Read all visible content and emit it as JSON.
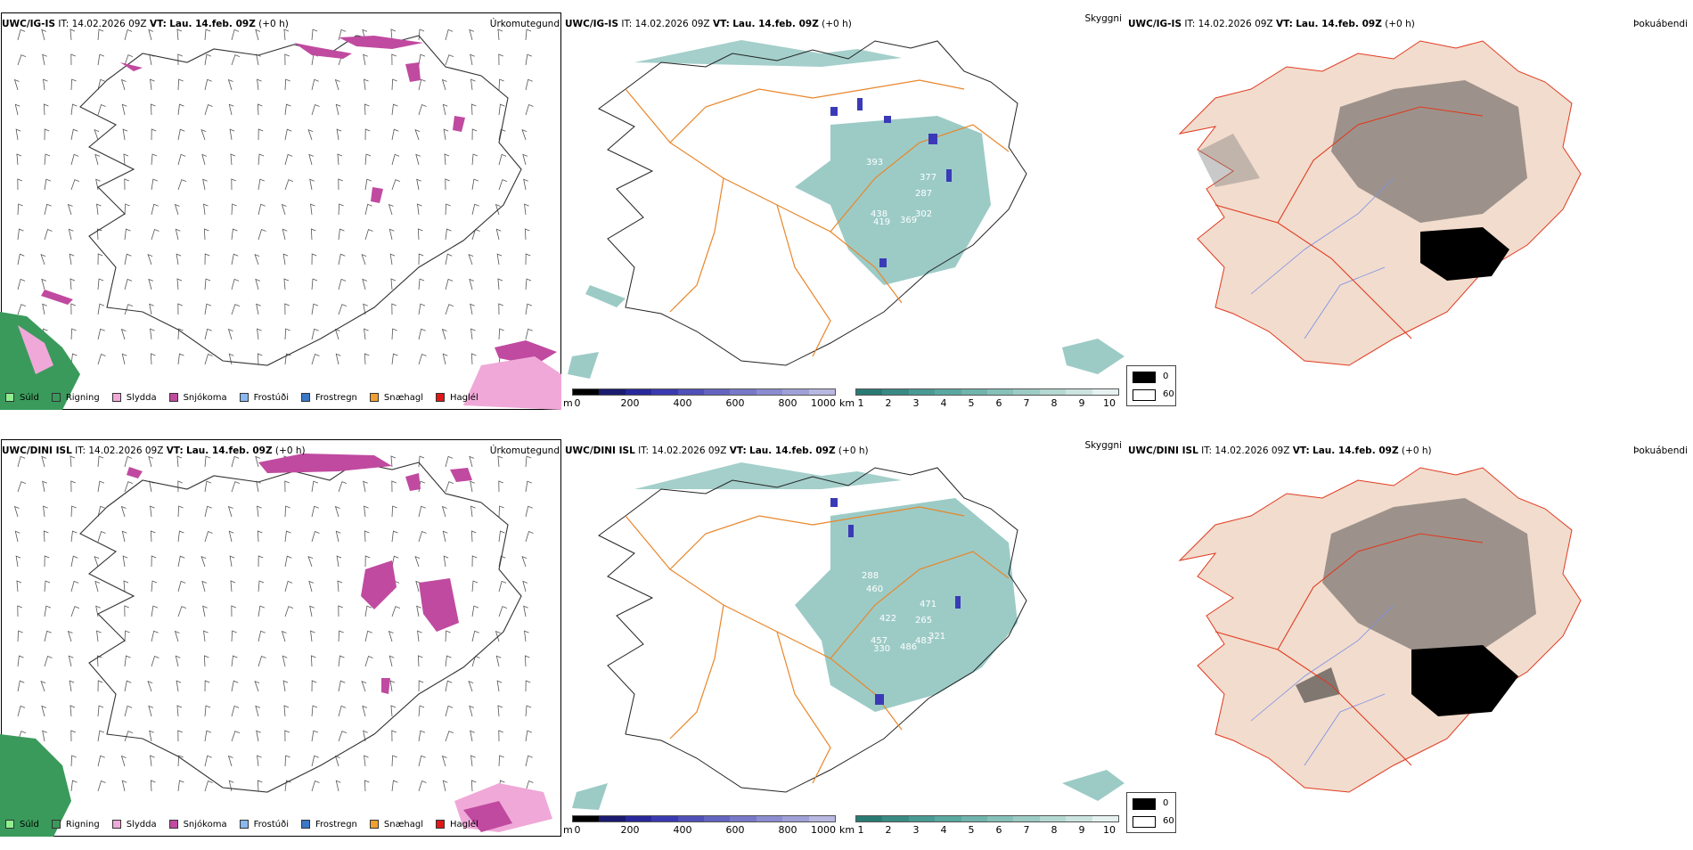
{
  "rows": [
    {
      "model": "UWC/IG-IS",
      "it_label": "IT:",
      "it_value": "14.02.2026 09Z",
      "vt_label": "VT:",
      "vt_value": "Lau. 14.feb. 09Z",
      "offset": "(+0 h)"
    },
    {
      "model": "UWC/DINI ISL",
      "it_label": "IT:",
      "it_value": "14.02.2026 09Z",
      "vt_label": "VT:",
      "vt_value": "Lau. 14.feb. 09Z",
      "offset": "(+0 h)"
    }
  ],
  "panels": {
    "precip_title": "Úrkomutegund",
    "vis_title": "Skyggni",
    "fog_title": "Þokuábendi"
  },
  "precip_legend": [
    {
      "label": "Súld",
      "color": "#90ee90"
    },
    {
      "label": "Rigning",
      "color": "#3a9a5b"
    },
    {
      "label": "Slydda",
      "color": "#f0a8d8"
    },
    {
      "label": "Snjókoma",
      "color": "#c04aa0"
    },
    {
      "label": "Frostúði",
      "color": "#8ab8f0"
    },
    {
      "label": "Frostregn",
      "color": "#3a78c8"
    },
    {
      "label": "Snæhagl",
      "color": "#f0a030"
    },
    {
      "label": "Haglél",
      "color": "#e01818"
    }
  ],
  "vis_m_bar": {
    "unit": "m",
    "ticks": [
      "0",
      "200",
      "400",
      "600",
      "800",
      "1000"
    ]
  },
  "vis_km_bar": {
    "unit": "km",
    "ticks": [
      "1",
      "2",
      "3",
      "4",
      "5",
      "6",
      "7",
      "8",
      "9",
      "10"
    ]
  },
  "cloud_legend": {
    "low": "0",
    "high": "60"
  },
  "vis_labels_top": [
    "393",
    "377",
    "438",
    "369",
    "302",
    "419",
    "287"
  ],
  "vis_labels_bottom": [
    "460",
    "471",
    "457",
    "486",
    "483",
    "330",
    "265",
    "288",
    "422",
    "321"
  ],
  "colors": {
    "snow": "#c04aa0",
    "rain": "#3a9a5b",
    "sleet": "#f0a8d8",
    "teal": "#5aa8a0",
    "road": "#e8862a",
    "land_fog": "#f2dccd",
    "road_red": "#e03a20",
    "river": "#7890e8"
  }
}
